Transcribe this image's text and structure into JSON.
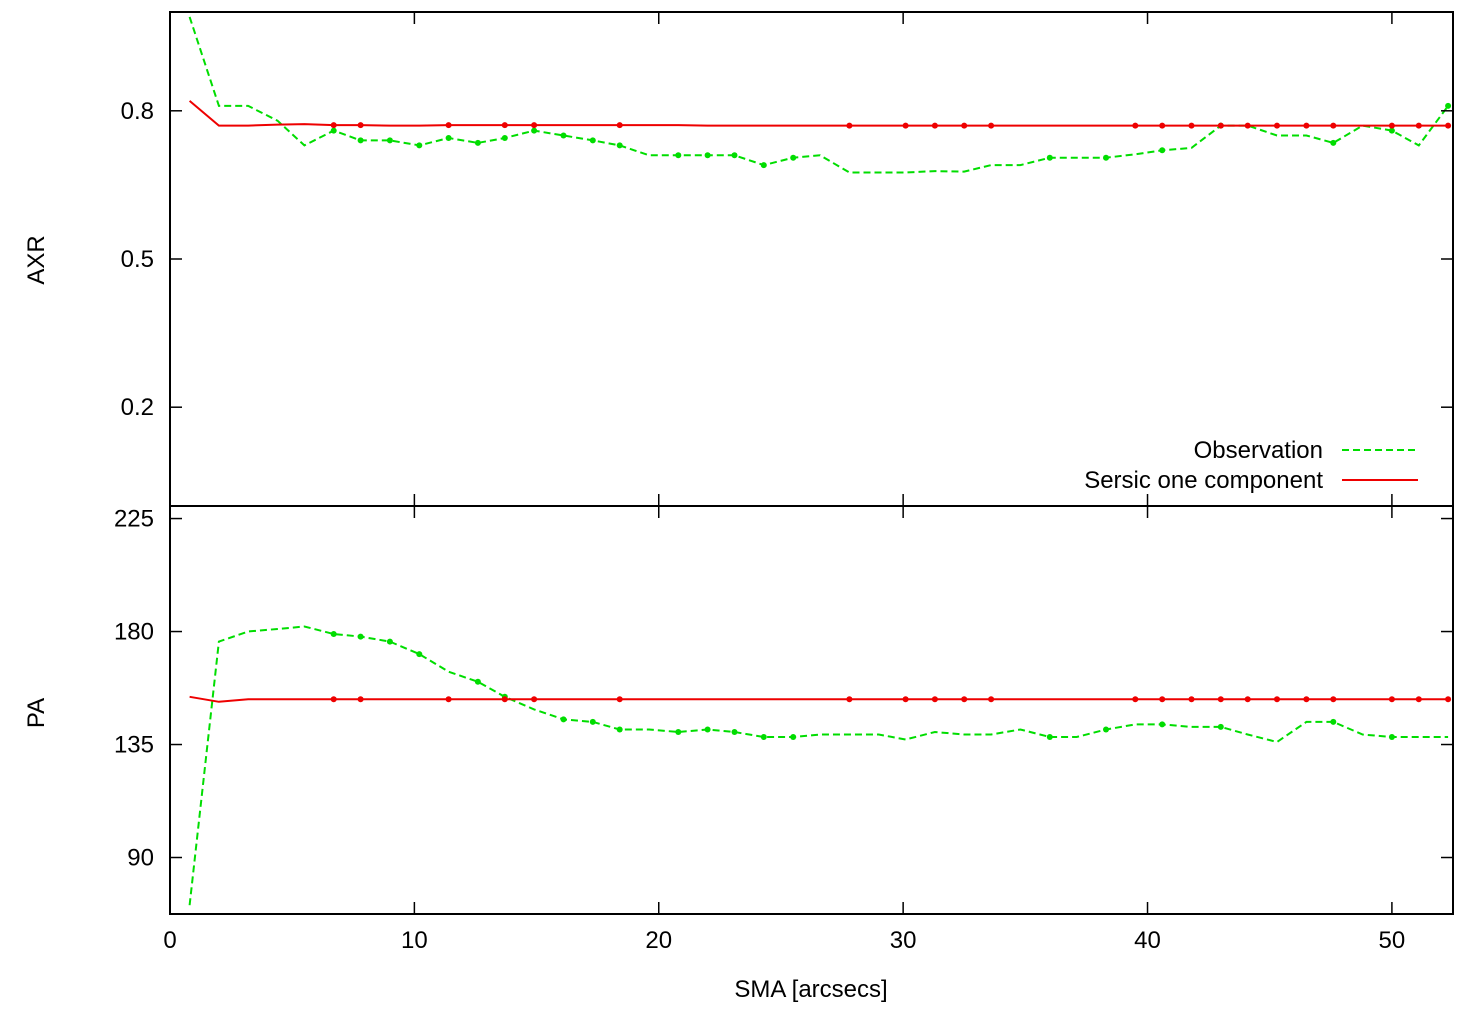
{
  "chart_data": [
    {
      "type": "line",
      "ylabel": "AXR",
      "ylim": [
        0.0,
        1.0
      ],
      "xlim": [
        0,
        52.5
      ],
      "yticks": [
        0.2,
        0.5,
        0.8
      ],
      "ytick_labels": [
        "0.2",
        "0.5",
        "0.8"
      ],
      "legend": {
        "position": "bottom-right",
        "entries": [
          "Observation",
          "Sersic one component"
        ]
      },
      "series": [
        {
          "name": "Observation",
          "color": "#00dd00",
          "style": "dashed",
          "x": [
            0.8,
            2.0,
            3.2,
            4.4,
            5.5,
            6.7,
            7.8,
            9.0,
            10.2,
            11.4,
            12.6,
            13.7,
            14.9,
            16.1,
            17.3,
            18.4,
            19.6,
            20.8,
            22.0,
            23.1,
            24.3,
            25.5,
            26.6,
            27.8,
            29.0,
            30.1,
            31.3,
            32.5,
            33.6,
            34.8,
            36.0,
            37.1,
            38.3,
            39.5,
            40.6,
            41.8,
            43.0,
            44.1,
            45.3,
            46.5,
            47.6,
            48.8,
            50.0,
            51.1,
            52.3
          ],
          "y": [
            0.99,
            0.81,
            0.81,
            0.78,
            0.73,
            0.76,
            0.74,
            0.74,
            0.73,
            0.745,
            0.735,
            0.745,
            0.76,
            0.75,
            0.74,
            0.73,
            0.71,
            0.71,
            0.71,
            0.71,
            0.69,
            0.705,
            0.71,
            0.675,
            0.675,
            0.675,
            0.678,
            0.677,
            0.69,
            0.69,
            0.705,
            0.705,
            0.705,
            0.712,
            0.72,
            0.725,
            0.77,
            0.77,
            0.75,
            0.75,
            0.735,
            0.77,
            0.76,
            0.73,
            0.81
          ],
          "markers_x": [
            6.7,
            7.8,
            9.0,
            10.2,
            11.4,
            12.6,
            13.7,
            14.9,
            16.1,
            17.3,
            18.4,
            20.8,
            22.0,
            23.1,
            24.3,
            25.5,
            36.0,
            38.3,
            40.6,
            43.0,
            47.6,
            50.0,
            52.3
          ]
        },
        {
          "name": "Sersic one component",
          "color": "#ee0000",
          "style": "solid",
          "x": [
            0.8,
            2.0,
            3.2,
            4.4,
            5.5,
            6.7,
            7.8,
            9.0,
            10.2,
            11.4,
            12.6,
            13.7,
            14.9,
            16.1,
            17.3,
            18.4,
            19.6,
            20.8,
            22.0,
            23.1,
            24.3,
            25.5,
            26.6,
            27.8,
            29.0,
            30.1,
            31.3,
            32.5,
            33.6,
            34.8,
            36.0,
            37.1,
            38.3,
            39.5,
            40.6,
            41.8,
            43.0,
            44.1,
            45.3,
            46.5,
            47.6,
            48.8,
            50.0,
            51.1,
            52.3
          ],
          "y": [
            0.82,
            0.77,
            0.77,
            0.772,
            0.773,
            0.771,
            0.771,
            0.77,
            0.77,
            0.771,
            0.771,
            0.771,
            0.771,
            0.771,
            0.771,
            0.771,
            0.771,
            0.771,
            0.77,
            0.77,
            0.77,
            0.77,
            0.77,
            0.77,
            0.77,
            0.77,
            0.77,
            0.77,
            0.77,
            0.77,
            0.77,
            0.77,
            0.77,
            0.77,
            0.77,
            0.77,
            0.77,
            0.77,
            0.77,
            0.77,
            0.77,
            0.77,
            0.77,
            0.77,
            0.77
          ],
          "markers_x": [
            6.7,
            7.8,
            11.4,
            13.7,
            14.9,
            18.4,
            27.8,
            30.1,
            31.3,
            32.5,
            33.6,
            39.5,
            40.6,
            41.8,
            43.0,
            44.1,
            45.3,
            46.5,
            47.6,
            50.0,
            51.1,
            52.3
          ]
        }
      ]
    },
    {
      "type": "line",
      "ylabel": "PA",
      "xlabel": "SMA [arcsecs]",
      "ylim": [
        67.5,
        230.0
      ],
      "xlim": [
        0,
        52.5
      ],
      "yticks": [
        90,
        135,
        180,
        225
      ],
      "ytick_labels": [
        "90",
        "135",
        "180",
        "225"
      ],
      "xticks": [
        0,
        10,
        20,
        30,
        40,
        50
      ],
      "xtick_labels": [
        "0",
        "10",
        "20",
        "30",
        "40",
        "50"
      ],
      "series": [
        {
          "name": "Observation",
          "color": "#00dd00",
          "style": "dashed",
          "x": [
            0.8,
            2.0,
            3.2,
            4.4,
            5.5,
            6.7,
            7.8,
            9.0,
            10.2,
            11.4,
            12.6,
            13.7,
            14.9,
            16.1,
            17.3,
            18.4,
            19.6,
            20.8,
            22.0,
            23.1,
            24.3,
            25.5,
            26.6,
            27.8,
            29.0,
            30.1,
            31.3,
            32.5,
            33.6,
            34.8,
            36.0,
            37.1,
            38.3,
            39.5,
            40.6,
            41.8,
            43.0,
            44.1,
            45.3,
            46.5,
            47.6,
            48.8,
            50.0,
            51.1,
            52.3
          ],
          "y": [
            71,
            176,
            180,
            181,
            182,
            179,
            178,
            176,
            171,
            164,
            160,
            154,
            149,
            145,
            144,
            141,
            141,
            140,
            141,
            140,
            138,
            138,
            139,
            139,
            139,
            137,
            140,
            139,
            139,
            141,
            138,
            138,
            141,
            143,
            143,
            142,
            142,
            139,
            136,
            144,
            144,
            139,
            138,
            138,
            138
          ],
          "markers_x": [
            6.7,
            7.8,
            9.0,
            10.2,
            12.6,
            13.7,
            16.1,
            17.3,
            18.4,
            20.8,
            22.0,
            23.1,
            24.3,
            25.5,
            36.0,
            38.3,
            40.6,
            43.0,
            47.6,
            50.0
          ]
        },
        {
          "name": "Sersic one component",
          "color": "#ee0000",
          "style": "solid",
          "x": [
            0.8,
            2.0,
            3.2,
            4.4,
            5.5,
            6.7,
            7.8,
            9.0,
            10.2,
            11.4,
            12.6,
            13.7,
            14.9,
            16.1,
            17.3,
            18.4,
            19.6,
            20.8,
            22.0,
            23.1,
            24.3,
            25.5,
            26.6,
            27.8,
            29.0,
            30.1,
            31.3,
            32.5,
            33.6,
            34.8,
            36.0,
            37.1,
            38.3,
            39.5,
            40.6,
            41.8,
            43.0,
            44.1,
            45.3,
            46.5,
            47.6,
            48.8,
            50.0,
            51.1,
            52.3
          ],
          "y": [
            154,
            152,
            153,
            153,
            153,
            153,
            153,
            153,
            153,
            153,
            153,
            153,
            153,
            153,
            153,
            153,
            153,
            153,
            153,
            153,
            153,
            153,
            153,
            153,
            153,
            153,
            153,
            153,
            153,
            153,
            153,
            153,
            153,
            153,
            153,
            153,
            153,
            153,
            153,
            153,
            153,
            153,
            153,
            153,
            153
          ],
          "markers_x": [
            6.7,
            7.8,
            11.4,
            13.7,
            14.9,
            18.4,
            27.8,
            30.1,
            31.3,
            32.5,
            33.6,
            39.5,
            40.6,
            41.8,
            43.0,
            44.1,
            45.3,
            46.5,
            47.6,
            50.0,
            51.1,
            52.3
          ]
        }
      ]
    }
  ]
}
